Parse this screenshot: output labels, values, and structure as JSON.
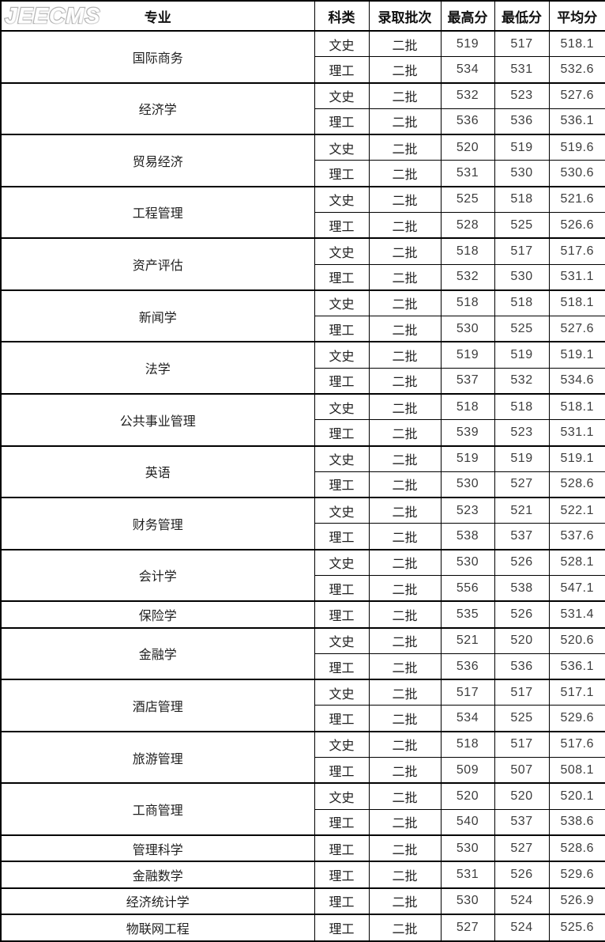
{
  "logo": {
    "text": "JEECMS"
  },
  "colors": {
    "border": "#000000",
    "background": "#ffffff",
    "logo_outline": "#b3b3b3",
    "text": "#1f1f1f"
  },
  "table": {
    "headers": [
      "专业",
      "科类",
      "录取批次",
      "最高分",
      "最低分",
      "平均分"
    ],
    "groups": [
      {
        "major": "国际商务",
        "rows": [
          [
            "文史",
            "二批",
            "519",
            "517",
            "518.1"
          ],
          [
            "理工",
            "二批",
            "534",
            "531",
            "532.6"
          ]
        ]
      },
      {
        "major": "经济学",
        "rows": [
          [
            "文史",
            "二批",
            "532",
            "523",
            "527.6"
          ],
          [
            "理工",
            "二批",
            "536",
            "536",
            "536.1"
          ]
        ]
      },
      {
        "major": "贸易经济",
        "rows": [
          [
            "文史",
            "二批",
            "520",
            "519",
            "519.6"
          ],
          [
            "理工",
            "二批",
            "531",
            "530",
            "530.6"
          ]
        ]
      },
      {
        "major": "工程管理",
        "rows": [
          [
            "文史",
            "二批",
            "525",
            "518",
            "521.6"
          ],
          [
            "理工",
            "二批",
            "528",
            "525",
            "526.6"
          ]
        ]
      },
      {
        "major": "资产评估",
        "rows": [
          [
            "文史",
            "二批",
            "518",
            "517",
            "517.6"
          ],
          [
            "理工",
            "二批",
            "532",
            "530",
            "531.1"
          ]
        ]
      },
      {
        "major": "新闻学",
        "rows": [
          [
            "文史",
            "二批",
            "518",
            "518",
            "518.1"
          ],
          [
            "理工",
            "二批",
            "530",
            "525",
            "527.6"
          ]
        ]
      },
      {
        "major": "法学",
        "rows": [
          [
            "文史",
            "二批",
            "519",
            "519",
            "519.1"
          ],
          [
            "理工",
            "二批",
            "537",
            "532",
            "534.6"
          ]
        ]
      },
      {
        "major": "公共事业管理",
        "rows": [
          [
            "文史",
            "二批",
            "518",
            "518",
            "518.1"
          ],
          [
            "理工",
            "二批",
            "539",
            "523",
            "531.1"
          ]
        ]
      },
      {
        "major": "英语",
        "rows": [
          [
            "文史",
            "二批",
            "519",
            "519",
            "519.1"
          ],
          [
            "理工",
            "二批",
            "530",
            "527",
            "528.6"
          ]
        ]
      },
      {
        "major": "财务管理",
        "rows": [
          [
            "文史",
            "二批",
            "523",
            "521",
            "522.1"
          ],
          [
            "理工",
            "二批",
            "538",
            "537",
            "537.6"
          ]
        ]
      },
      {
        "major": "会计学",
        "rows": [
          [
            "文史",
            "二批",
            "530",
            "526",
            "528.1"
          ],
          [
            "理工",
            "二批",
            "556",
            "538",
            "547.1"
          ]
        ]
      },
      {
        "major": "保险学",
        "rows": [
          [
            "理工",
            "二批",
            "535",
            "526",
            "531.4"
          ]
        ]
      },
      {
        "major": "金融学",
        "rows": [
          [
            "文史",
            "二批",
            "521",
            "520",
            "520.6"
          ],
          [
            "理工",
            "二批",
            "536",
            "536",
            "536.1"
          ]
        ]
      },
      {
        "major": "酒店管理",
        "rows": [
          [
            "文史",
            "二批",
            "517",
            "517",
            "517.1"
          ],
          [
            "理工",
            "二批",
            "534",
            "525",
            "529.6"
          ]
        ]
      },
      {
        "major": "旅游管理",
        "rows": [
          [
            "文史",
            "二批",
            "518",
            "517",
            "517.6"
          ],
          [
            "理工",
            "二批",
            "509",
            "507",
            "508.1"
          ]
        ]
      },
      {
        "major": "工商管理",
        "rows": [
          [
            "文史",
            "二批",
            "520",
            "520",
            "520.1"
          ],
          [
            "理工",
            "二批",
            "540",
            "537",
            "538.6"
          ]
        ]
      },
      {
        "major": "管理科学",
        "rows": [
          [
            "理工",
            "二批",
            "530",
            "527",
            "528.6"
          ]
        ]
      },
      {
        "major": "金融数学",
        "rows": [
          [
            "理工",
            "二批",
            "531",
            "526",
            "529.6"
          ]
        ]
      },
      {
        "major": "经济统计学",
        "rows": [
          [
            "理工",
            "二批",
            "530",
            "524",
            "526.9"
          ]
        ]
      },
      {
        "major": "物联网工程",
        "rows": [
          [
            "理工",
            "二批",
            "527",
            "524",
            "525.6"
          ]
        ]
      }
    ]
  }
}
